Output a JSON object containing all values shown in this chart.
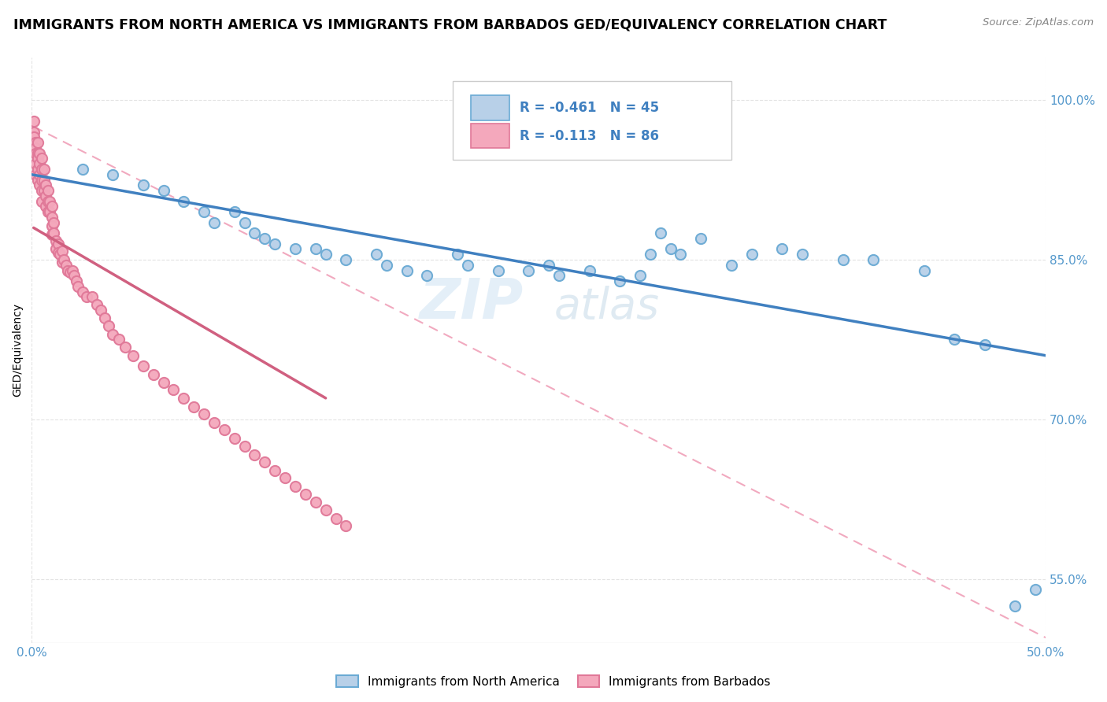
{
  "title": "IMMIGRANTS FROM NORTH AMERICA VS IMMIGRANTS FROM BARBADOS GED/EQUIVALENCY CORRELATION CHART",
  "source_text": "Source: ZipAtlas.com",
  "ylabel": "GED/Equivalency",
  "xlim": [
    0.0,
    0.5
  ],
  "ylim": [
    0.49,
    1.04
  ],
  "watermark_text": "ZIPatlas",
  "legend_label_blue": "Immigrants from North America",
  "legend_label_pink": "Immigrants from Barbados",
  "blue_color": "#b8d0e8",
  "pink_color": "#f4a8bc",
  "blue_edge_color": "#6aaad4",
  "pink_edge_color": "#e07898",
  "blue_line_color": "#4080c0",
  "pink_line_color": "#d06080",
  "dashed_line_color": "#f0a0b8",
  "grid_color": "#dddddd",
  "tick_color": "#5599cc",
  "background_color": "#ffffff",
  "blue_scatter_x": [
    0.025,
    0.04,
    0.055,
    0.065,
    0.075,
    0.085,
    0.09,
    0.1,
    0.105,
    0.11,
    0.115,
    0.12,
    0.13,
    0.14,
    0.145,
    0.155,
    0.17,
    0.175,
    0.185,
    0.195,
    0.21,
    0.215,
    0.23,
    0.245,
    0.255,
    0.26,
    0.275,
    0.29,
    0.3,
    0.305,
    0.31,
    0.315,
    0.32,
    0.33,
    0.345,
    0.355,
    0.37,
    0.38,
    0.4,
    0.415,
    0.44,
    0.455,
    0.47,
    0.485,
    0.495
  ],
  "blue_scatter_y": [
    0.935,
    0.93,
    0.92,
    0.915,
    0.905,
    0.895,
    0.885,
    0.895,
    0.885,
    0.875,
    0.87,
    0.865,
    0.86,
    0.86,
    0.855,
    0.85,
    0.855,
    0.845,
    0.84,
    0.835,
    0.855,
    0.845,
    0.84,
    0.84,
    0.845,
    0.835,
    0.84,
    0.83,
    0.835,
    0.855,
    0.875,
    0.86,
    0.855,
    0.87,
    0.845,
    0.855,
    0.86,
    0.855,
    0.85,
    0.85,
    0.84,
    0.775,
    0.77,
    0.525,
    0.54
  ],
  "pink_scatter_x": [
    0.001,
    0.001,
    0.001,
    0.002,
    0.002,
    0.002,
    0.002,
    0.002,
    0.003,
    0.003,
    0.003,
    0.003,
    0.003,
    0.004,
    0.004,
    0.004,
    0.004,
    0.005,
    0.005,
    0.005,
    0.005,
    0.005,
    0.006,
    0.006,
    0.006,
    0.007,
    0.007,
    0.007,
    0.008,
    0.008,
    0.008,
    0.009,
    0.009,
    0.01,
    0.01,
    0.01,
    0.01,
    0.011,
    0.011,
    0.012,
    0.012,
    0.013,
    0.013,
    0.014,
    0.015,
    0.015,
    0.016,
    0.017,
    0.018,
    0.019,
    0.02,
    0.021,
    0.022,
    0.023,
    0.025,
    0.027,
    0.03,
    0.032,
    0.034,
    0.036,
    0.038,
    0.04,
    0.043,
    0.046,
    0.05,
    0.055,
    0.06,
    0.065,
    0.07,
    0.075,
    0.08,
    0.085,
    0.09,
    0.095,
    0.1,
    0.105,
    0.11,
    0.115,
    0.12,
    0.125,
    0.13,
    0.135,
    0.14,
    0.145,
    0.15,
    0.155
  ],
  "pink_scatter_y": [
    0.98,
    0.97,
    0.965,
    0.96,
    0.955,
    0.95,
    0.94,
    0.93,
    0.96,
    0.95,
    0.945,
    0.935,
    0.925,
    0.95,
    0.94,
    0.93,
    0.92,
    0.945,
    0.935,
    0.925,
    0.915,
    0.905,
    0.935,
    0.925,
    0.915,
    0.92,
    0.91,
    0.9,
    0.915,
    0.905,
    0.895,
    0.905,
    0.895,
    0.9,
    0.89,
    0.882,
    0.874,
    0.885,
    0.875,
    0.868,
    0.86,
    0.865,
    0.857,
    0.855,
    0.858,
    0.848,
    0.85,
    0.845,
    0.84,
    0.838,
    0.84,
    0.835,
    0.83,
    0.825,
    0.82,
    0.815,
    0.815,
    0.808,
    0.803,
    0.795,
    0.788,
    0.78,
    0.775,
    0.768,
    0.76,
    0.75,
    0.742,
    0.735,
    0.728,
    0.72,
    0.712,
    0.705,
    0.697,
    0.69,
    0.682,
    0.675,
    0.667,
    0.66,
    0.652,
    0.645,
    0.637,
    0.63,
    0.622,
    0.615,
    0.607,
    0.6
  ],
  "blue_line_x0": 0.0,
  "blue_line_x1": 0.5,
  "blue_line_y0": 0.93,
  "blue_line_y1": 0.76,
  "pink_line_x0": 0.001,
  "pink_line_x1": 0.145,
  "pink_line_y0": 0.88,
  "pink_line_y1": 0.72,
  "dash_line_x0": 0.001,
  "dash_line_x1": 0.5,
  "dash_line_y0": 0.975,
  "dash_line_y1": 0.495
}
